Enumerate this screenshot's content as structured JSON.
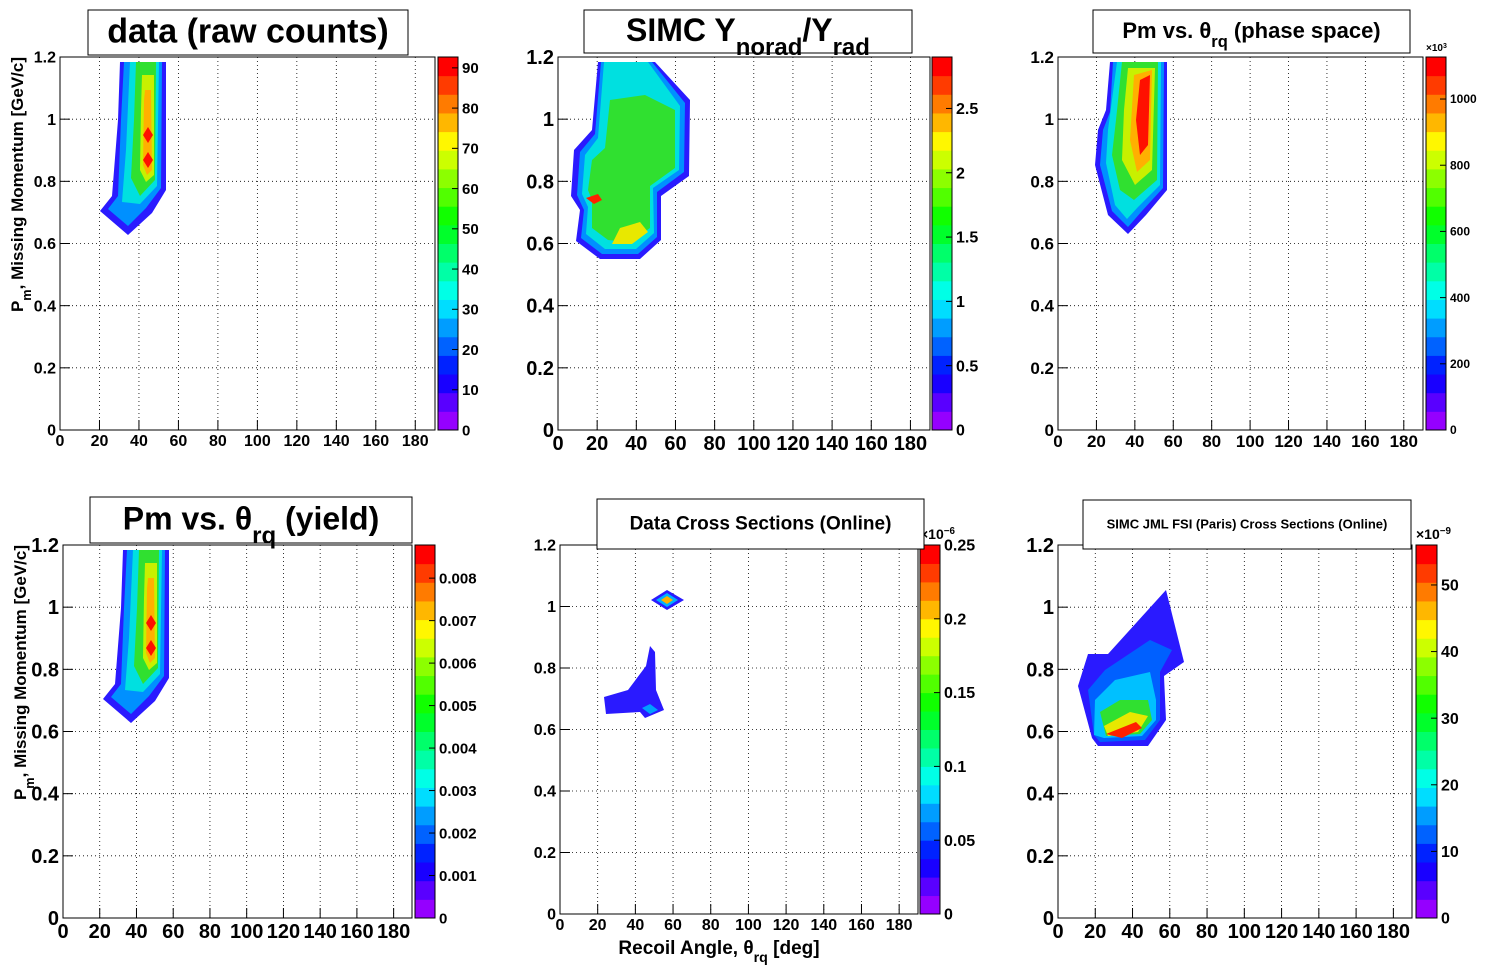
{
  "chart_data": [
    {
      "type": "contour",
      "title": [
        {
          "text": "data (raw counts)"
        }
      ],
      "ylabel": [
        {
          "text": "P"
        },
        {
          "text": "m",
          "shift": "sub"
        },
        {
          "text": ", Missing Momentum [GeV/c]"
        }
      ],
      "xlim": [
        0,
        190
      ],
      "xticks": [
        0,
        20,
        40,
        60,
        80,
        100,
        120,
        140,
        160,
        180
      ],
      "ylim": [
        0,
        1.2
      ],
      "yticks": [
        0,
        0.2,
        0.4,
        0.6,
        0.8,
        1,
        1.2
      ],
      "zlim": [
        0,
        92.7
      ],
      "zticks": [
        0,
        10,
        20,
        30,
        40,
        50,
        60,
        70,
        80,
        90
      ],
      "palette": "rainbow",
      "contour_levels": 20,
      "grid": true
    },
    {
      "type": "contour",
      "title": [
        {
          "text": "SIMC Y"
        },
        {
          "text": "norad",
          "shift": "sub"
        },
        {
          "text": "/Y"
        },
        {
          "text": "rad",
          "shift": "sub"
        }
      ],
      "xlim": [
        0,
        190
      ],
      "xticks": [
        0,
        20,
        40,
        60,
        80,
        100,
        120,
        140,
        160,
        180
      ],
      "ylim": [
        0,
        1.2
      ],
      "yticks": [
        0,
        0.2,
        0.4,
        0.6,
        0.8,
        1,
        1.2
      ],
      "zlim": [
        0,
        2.9
      ],
      "zticks": [
        0,
        0.5,
        1,
        1.5,
        2,
        2.5
      ],
      "palette": "rainbow",
      "contour_levels": 20,
      "grid": true
    },
    {
      "type": "contour",
      "title": [
        {
          "text": "Pm vs. θ"
        },
        {
          "text": "rq",
          "shift": "sub"
        },
        {
          "text": " (phase space)"
        }
      ],
      "xlim": [
        0,
        190
      ],
      "xticks": [
        0,
        20,
        40,
        60,
        80,
        100,
        120,
        140,
        160,
        180
      ],
      "ylim": [
        0,
        1.2
      ],
      "yticks": [
        0,
        0.2,
        0.4,
        0.6,
        0.8,
        1,
        1.2
      ],
      "zlim": [
        0,
        1127
      ],
      "zticks": [
        0,
        200,
        400,
        600,
        800,
        1000
      ],
      "zexponent": [
        {
          "text": "×10"
        },
        {
          "text": "3",
          "shift": "super"
        }
      ],
      "palette": "rainbow",
      "contour_levels": 20,
      "grid": true
    },
    {
      "type": "contour",
      "title": [
        {
          "text": "Pm vs. θ"
        },
        {
          "text": "rq",
          "shift": "sub"
        },
        {
          "text": " (yield)"
        }
      ],
      "ylabel": [
        {
          "text": "P"
        },
        {
          "text": "m",
          "shift": "sub"
        },
        {
          "text": ", Missing Momentum [GeV/c]"
        }
      ],
      "xlim": [
        0,
        190
      ],
      "xticks": [
        0,
        20,
        40,
        60,
        80,
        100,
        120,
        140,
        160,
        180
      ],
      "ylim": [
        0,
        1.2
      ],
      "yticks": [
        0,
        0.2,
        0.4,
        0.6,
        0.8,
        1,
        1.2
      ],
      "zlim": [
        0,
        0.00878
      ],
      "zticks": [
        0,
        0.001,
        0.002,
        0.003,
        0.004,
        0.005,
        0.006,
        0.007,
        0.008
      ],
      "palette": "rainbow",
      "contour_levels": 20,
      "grid": true
    },
    {
      "type": "contour",
      "title": [
        {
          "text": "Data Cross Sections (Online)"
        }
      ],
      "xlabel": [
        {
          "text": "Recoil Angle, θ"
        },
        {
          "text": "rq",
          "shift": "sub"
        },
        {
          "text": " [deg]"
        }
      ],
      "xlim": [
        0,
        190
      ],
      "xticks": [
        0,
        20,
        40,
        60,
        80,
        100,
        120,
        140,
        160,
        180
      ],
      "ylim": [
        0,
        1.2
      ],
      "yticks": [
        0,
        0.2,
        0.4,
        0.6,
        0.8,
        1,
        1.2
      ],
      "zlim": [
        0,
        0.25
      ],
      "zticks": [
        0,
        0.05,
        0.1,
        0.15,
        0.2,
        0.25
      ],
      "zexponent": [
        {
          "text": "×10"
        },
        {
          "text": "−6",
          "shift": "super"
        }
      ],
      "palette": "rainbow",
      "contour_levels": 20,
      "grid": true
    },
    {
      "type": "contour",
      "title": [
        {
          "text": "SIMC JML FSI (Paris) Cross Sections (Online)"
        }
      ],
      "xlim": [
        0,
        190
      ],
      "xticks": [
        0,
        20,
        40,
        60,
        80,
        100,
        120,
        140,
        160,
        180
      ],
      "ylim": [
        0,
        1.2
      ],
      "yticks": [
        0,
        0.2,
        0.4,
        0.6,
        0.8,
        1,
        1.2
      ],
      "zlim": [
        0,
        56
      ],
      "zticks": [
        0,
        10,
        20,
        30,
        40,
        50
      ],
      "zexponent": [
        {
          "text": "×10"
        },
        {
          "text": "−9",
          "shift": "super"
        }
      ],
      "palette": "rainbow",
      "contour_levels": 20,
      "grid": true
    }
  ]
}
